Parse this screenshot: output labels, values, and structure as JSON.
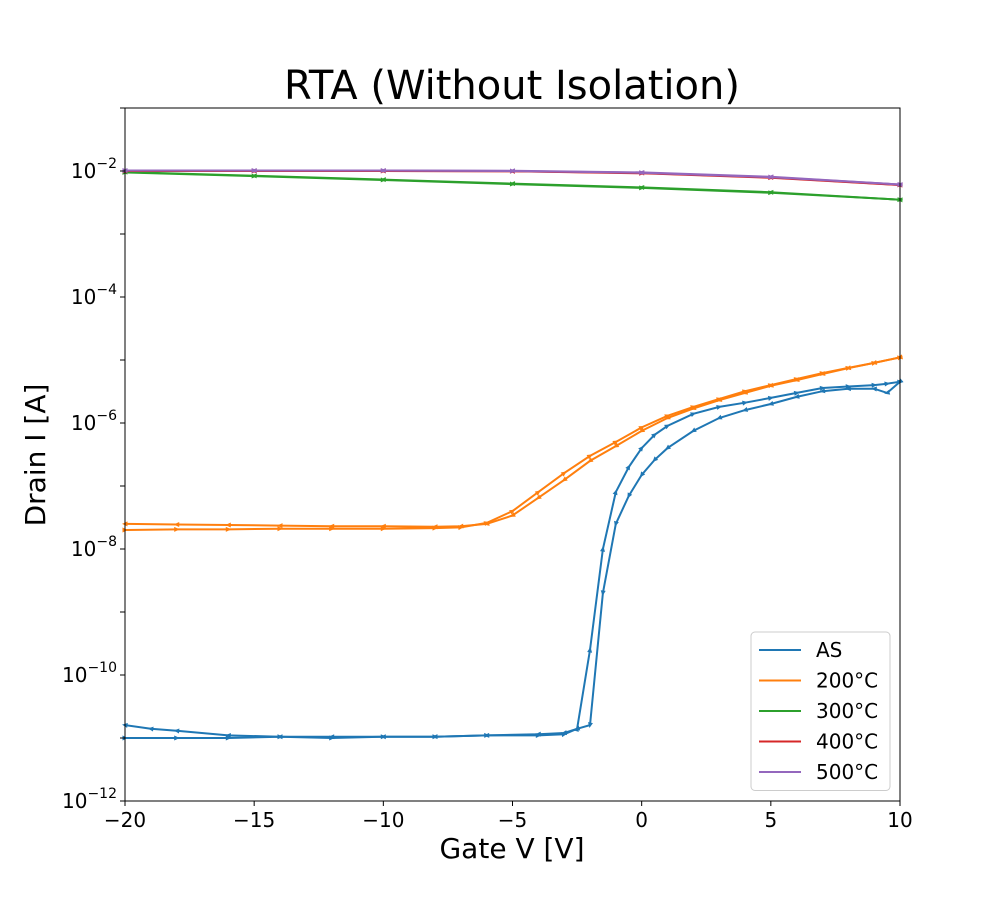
{
  "chart_data": {
    "type": "line",
    "title": "RTA (Without Isolation)",
    "xlabel": "Gate V [V]",
    "ylabel": "Drain I [A]",
    "xlim": [
      -20,
      10
    ],
    "ylim": [
      1e-12,
      0.1
    ],
    "y_scale": "log",
    "grid": false,
    "legend_position": "lower-right",
    "x_ticks": [
      {
        "value": -20,
        "label": "−20"
      },
      {
        "value": -15,
        "label": "−15"
      },
      {
        "value": -10,
        "label": "−10"
      },
      {
        "value": -5,
        "label": "−5"
      },
      {
        "value": 0,
        "label": "0"
      },
      {
        "value": 5,
        "label": "5"
      },
      {
        "value": 10,
        "label": "10"
      }
    ],
    "y_ticks": [
      {
        "value": 1e-12,
        "base": "10",
        "exp": "−12"
      },
      {
        "value": 1e-10,
        "base": "10",
        "exp": "−10"
      },
      {
        "value": 1e-08,
        "base": "10",
        "exp": "−8"
      },
      {
        "value": 1e-06,
        "base": "10",
        "exp": "−6"
      },
      {
        "value": 0.0001,
        "base": "10",
        "exp": "−4"
      },
      {
        "value": 0.01,
        "base": "10",
        "exp": "−2"
      }
    ],
    "series": [
      {
        "name": "AS",
        "color": "#1f77b4",
        "forward": {
          "x": [
            -20,
            -18,
            -16,
            -14,
            -12,
            -10,
            -8,
            -6,
            -4,
            -3,
            -2.5,
            -2,
            -1.5,
            -1,
            -0.5,
            0,
            0.5,
            1,
            2,
            3,
            4,
            5,
            6,
            7,
            8,
            9,
            9.5,
            10
          ],
          "y": [
            1e-11,
            1e-11,
            1e-11,
            1.05e-11,
            1e-11,
            1.05e-11,
            1.05e-11,
            1.1e-11,
            1.1e-11,
            1.15e-11,
            1.4e-11,
            2.5e-10,
            1e-08,
            8e-08,
            2e-07,
            4e-07,
            6.5e-07,
            9e-07,
            1.4e-06,
            1.8e-06,
            2.1e-06,
            2.5e-06,
            3e-06,
            3.6e-06,
            3.8e-06,
            4e-06,
            4.2e-06,
            4.5e-06
          ]
        },
        "reverse": {
          "x": [
            10,
            9.5,
            9,
            8,
            7,
            6,
            5,
            4,
            3,
            2,
            1,
            0.5,
            0,
            -0.5,
            -1,
            -1.5,
            -2,
            -2.5,
            -3,
            -4,
            -6,
            -8,
            -10,
            -12,
            -14,
            -16,
            -18,
            -19,
            -20
          ],
          "y": [
            4.5e-06,
            3e-06,
            3.5e-06,
            3.5e-06,
            3.2e-06,
            2.6e-06,
            2e-06,
            1.6e-06,
            1.2e-06,
            7.5e-07,
            4e-07,
            2.6e-07,
            1.5e-07,
            7e-08,
            2.5e-08,
            2e-09,
            1.6e-11,
            1.4e-11,
            1.2e-11,
            1.15e-11,
            1.1e-11,
            1.05e-11,
            1.05e-11,
            1.05e-11,
            1.05e-11,
            1.1e-11,
            1.3e-11,
            1.4e-11,
            1.6e-11
          ]
        }
      },
      {
        "name": "200°C",
        "color": "#ff7f0e",
        "forward": {
          "x": [
            -20,
            -18,
            -16,
            -14,
            -12,
            -10,
            -8,
            -7,
            -6,
            -5,
            -4,
            -3,
            -2,
            -1,
            0,
            1,
            2,
            3,
            4,
            5,
            6,
            7,
            8,
            9,
            10
          ],
          "y": [
            2e-08,
            2.05e-08,
            2.05e-08,
            2.1e-08,
            2.1e-08,
            2.1e-08,
            2.15e-08,
            2.2e-08,
            2.6e-08,
            4e-08,
            8e-08,
            1.6e-07,
            3e-07,
            5e-07,
            8.5e-07,
            1.3e-06,
            1.8e-06,
            2.4e-06,
            3.2e-06,
            4e-06,
            5e-06,
            6.2e-06,
            7.5e-06,
            9e-06,
            1.1e-05
          ]
        },
        "reverse": {
          "x": [
            10,
            9,
            8,
            7,
            6,
            5,
            4,
            3,
            2,
            1,
            0,
            -1,
            -2,
            -3,
            -4,
            -5,
            -6,
            -7,
            -8,
            -10,
            -12,
            -14,
            -16,
            -18,
            -20
          ],
          "y": [
            1.1e-05,
            9e-06,
            7.4e-06,
            6e-06,
            4.8e-06,
            3.9e-06,
            3e-06,
            2.3e-06,
            1.7e-06,
            1.2e-06,
            7.5e-07,
            4.3e-07,
            2.5e-07,
            1.25e-07,
            6.5e-08,
            3.4e-08,
            2.5e-08,
            2.3e-08,
            2.25e-08,
            2.3e-08,
            2.3e-08,
            2.35e-08,
            2.4e-08,
            2.45e-08,
            2.5e-08
          ]
        }
      },
      {
        "name": "300°C",
        "color": "#2ca02c",
        "forward": {
          "x": [
            -20,
            -15,
            -10,
            -5,
            0,
            5,
            10
          ],
          "y": [
            0.0095,
            0.0083,
            0.0072,
            0.0062,
            0.0054,
            0.0045,
            0.0035
          ]
        },
        "reverse": {
          "x": [
            10,
            5,
            0,
            -5,
            -10,
            -15,
            -20
          ],
          "y": [
            0.0035,
            0.0046,
            0.0055,
            0.0063,
            0.0073,
            0.0084,
            0.0096
          ]
        }
      },
      {
        "name": "400°C",
        "color": "#d62728",
        "forward": {
          "x": [
            -20,
            -15,
            -10,
            -5,
            0,
            5,
            10
          ],
          "y": [
            0.01,
            0.01,
            0.01,
            0.0099,
            0.0092,
            0.0078,
            0.006
          ]
        },
        "reverse": {
          "x": [
            10,
            5,
            0,
            -5,
            -10,
            -15,
            -20
          ],
          "y": [
            0.006,
            0.0079,
            0.0093,
            0.0099,
            0.01,
            0.01,
            0.01
          ]
        }
      },
      {
        "name": "500°C",
        "color": "#9467bd",
        "forward": {
          "x": [
            -20,
            -15,
            -10,
            -5,
            0,
            5,
            10
          ],
          "y": [
            0.0102,
            0.0102,
            0.0102,
            0.01,
            0.0094,
            0.008,
            0.0061
          ]
        },
        "reverse": {
          "x": [
            10,
            5,
            0,
            -5,
            -10,
            -15,
            -20
          ],
          "y": [
            0.0061,
            0.0081,
            0.0095,
            0.0101,
            0.0102,
            0.0102,
            0.0102
          ]
        }
      }
    ]
  }
}
